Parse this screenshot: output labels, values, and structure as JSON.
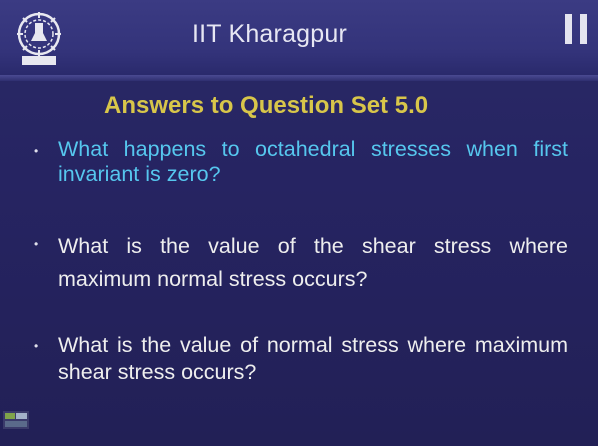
{
  "header": {
    "title": "IIT Kharagpur",
    "logo_icon": "iit-kharagpur-emblem"
  },
  "playback": {
    "pause_icon": "pause-icon"
  },
  "content": {
    "title": "Answers to Question Set 5.0",
    "questions": [
      {
        "bullet": "•",
        "text": "What happens to octahedral stresses when first invariant is zero?"
      },
      {
        "bullet": "•",
        "text": "What is the value of the shear stress where maximum normal stress occurs?"
      },
      {
        "bullet": "•",
        "text": "What is the value of normal stress where maximum shear stress occurs?"
      }
    ]
  },
  "colors": {
    "background": "#23225d",
    "header": "#33337a",
    "title": "#d8c64a",
    "highlight_question": "#56c7ee",
    "question_text": "#eeeeee"
  }
}
